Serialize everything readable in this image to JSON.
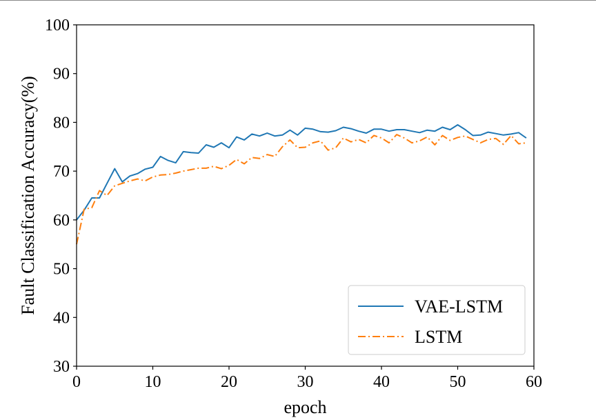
{
  "chart_data": {
    "type": "line",
    "xlabel": "epoch",
    "ylabel": "Fault Classification Accuracy(%)",
    "xlim": [
      0,
      60
    ],
    "ylim": [
      30,
      100
    ],
    "xticks": [
      "0",
      "10",
      "20",
      "30",
      "40",
      "50",
      "60"
    ],
    "yticks": [
      "30",
      "40",
      "50",
      "60",
      "70",
      "80",
      "90",
      "100"
    ],
    "legend_position": "lower-right",
    "grid": false,
    "x": [
      0,
      1,
      2,
      3,
      4,
      5,
      6,
      7,
      8,
      9,
      10,
      11,
      12,
      13,
      14,
      15,
      16,
      17,
      18,
      19,
      20,
      21,
      22,
      23,
      24,
      25,
      26,
      27,
      28,
      29,
      30,
      31,
      32,
      33,
      34,
      35,
      36,
      37,
      38,
      39,
      40,
      41,
      42,
      43,
      44,
      45,
      46,
      47,
      48,
      49,
      50,
      51,
      52,
      53,
      54,
      55,
      56,
      57,
      58,
      59
    ],
    "series": [
      {
        "name": "VAE-LSTM",
        "color": "#1f77b4",
        "linestyle": "solid",
        "values": [
          60.0,
          62.0,
          64.5,
          64.5,
          67.5,
          70.5,
          67.8,
          69.0,
          69.5,
          70.4,
          70.8,
          73.0,
          72.2,
          71.7,
          74.0,
          73.8,
          73.7,
          75.4,
          74.9,
          75.8,
          74.8,
          77.0,
          76.4,
          77.6,
          77.2,
          77.8,
          77.2,
          77.4,
          78.4,
          77.4,
          78.8,
          78.6,
          78.1,
          78.0,
          78.3,
          79.0,
          78.7,
          78.2,
          77.8,
          78.6,
          78.6,
          78.2,
          78.5,
          78.5,
          78.2,
          77.9,
          78.4,
          78.2,
          79.0,
          78.5,
          79.5,
          78.5,
          77.3,
          77.4,
          78.0,
          77.7,
          77.4,
          77.6,
          77.9,
          76.8
        ]
      },
      {
        "name": "LSTM",
        "color": "#ff7f0e",
        "linestyle": "dashdot",
        "values": [
          55.0,
          62.2,
          62.5,
          66.0,
          65.0,
          67.0,
          67.5,
          68.0,
          68.4,
          68.0,
          68.8,
          69.2,
          69.3,
          69.6,
          70.0,
          70.3,
          70.6,
          70.6,
          71.0,
          70.5,
          71.2,
          72.4,
          71.5,
          72.8,
          72.6,
          73.4,
          73.0,
          75.0,
          76.4,
          74.8,
          74.9,
          75.8,
          76.2,
          74.3,
          74.8,
          76.8,
          76.0,
          76.5,
          75.8,
          77.3,
          76.8,
          75.8,
          77.5,
          76.8,
          75.8,
          76.2,
          77.0,
          75.4,
          77.3,
          76.3,
          76.9,
          77.2,
          76.5,
          75.8,
          76.5,
          76.7,
          75.5,
          77.3,
          75.6,
          75.8
        ]
      }
    ]
  }
}
